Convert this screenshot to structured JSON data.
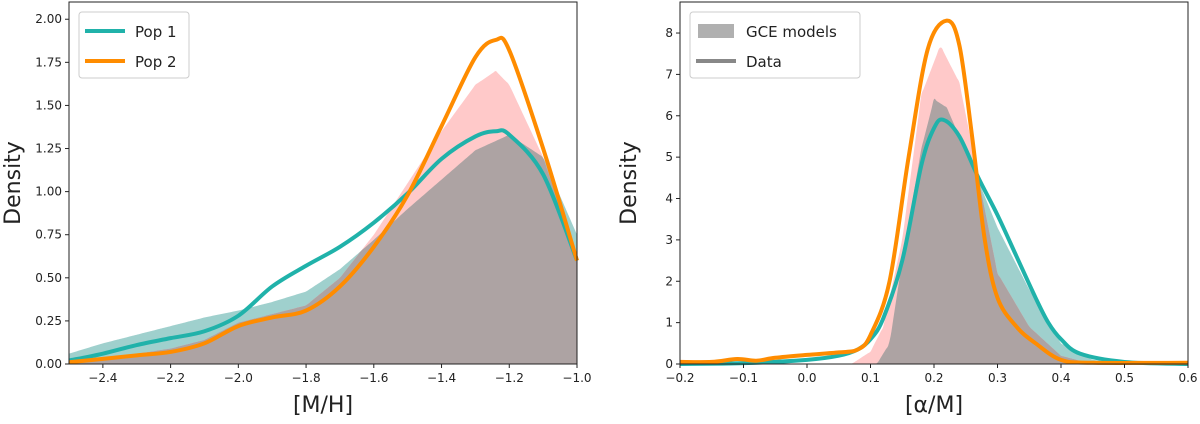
{
  "colors": {
    "pop1": "#20b2aa",
    "pop2": "#ff8c00",
    "pop1_fill": "#9fd0cd",
    "pop2_fill": "#ffc9c9",
    "overlap_fill": "#ada3a3",
    "legend_gray": "#888888"
  },
  "chart_data": [
    {
      "type": "area",
      "xlabel": "[M/H]",
      "ylabel": "Density",
      "xlim": [
        -2.5,
        -1.0
      ],
      "ylim": [
        0,
        2.1
      ],
      "xticks": [
        -2.4,
        -2.2,
        -2.0,
        -1.8,
        -1.6,
        -1.4,
        -1.2,
        -1.0
      ],
      "xtick_labels": [
        "−2.4",
        "−2.2",
        "−2.0",
        "−1.8",
        "−1.6",
        "−1.4",
        "−1.2",
        "−1.0"
      ],
      "yticks": [
        0,
        0.25,
        0.5,
        0.75,
        1.0,
        1.25,
        1.5,
        1.75,
        2.0
      ],
      "ytick_labels": [
        "0.00",
        "0.25",
        "0.50",
        "0.75",
        "1.00",
        "1.25",
        "1.50",
        "1.75",
        "2.00"
      ],
      "legend": {
        "placement": "top-left",
        "entries": [
          {
            "label": "Pop 1",
            "color": "#20b2aa",
            "kind": "line"
          },
          {
            "label": "Pop 2",
            "color": "#ff8c00",
            "kind": "line"
          }
        ]
      },
      "fills": [
        {
          "series": "Pop 1",
          "x": [
            -2.5,
            -2.4,
            -2.3,
            -2.2,
            -2.1,
            -2.0,
            -1.9,
            -1.8,
            -1.7,
            -1.6,
            -1.5,
            -1.4,
            -1.3,
            -1.2,
            -1.1,
            -1.0
          ],
          "y": [
            0.06,
            0.12,
            0.17,
            0.22,
            0.27,
            0.31,
            0.36,
            0.42,
            0.55,
            0.72,
            0.9,
            1.07,
            1.24,
            1.33,
            1.2,
            0.75
          ]
        },
        {
          "series": "Pop 2",
          "x": [
            -2.5,
            -2.4,
            -2.3,
            -2.2,
            -2.1,
            -2.0,
            -1.9,
            -1.8,
            -1.7,
            -1.6,
            -1.5,
            -1.4,
            -1.3,
            -1.24,
            -1.2,
            -1.1,
            -1.0
          ],
          "y": [
            0.02,
            0.04,
            0.06,
            0.09,
            0.14,
            0.24,
            0.29,
            0.34,
            0.5,
            0.75,
            1.05,
            1.35,
            1.62,
            1.7,
            1.62,
            1.2,
            0.62
          ]
        }
      ],
      "lines": [
        {
          "series": "Pop 1",
          "x": [
            -2.5,
            -2.4,
            -2.3,
            -2.2,
            -2.1,
            -2.0,
            -1.9,
            -1.8,
            -1.7,
            -1.6,
            -1.5,
            -1.4,
            -1.3,
            -1.24,
            -1.2,
            -1.1,
            -1.0
          ],
          "y": [
            0.02,
            0.06,
            0.11,
            0.15,
            0.19,
            0.28,
            0.45,
            0.57,
            0.68,
            0.82,
            0.99,
            1.19,
            1.32,
            1.35,
            1.33,
            1.1,
            0.6
          ]
        },
        {
          "series": "Pop 2",
          "x": [
            -2.5,
            -2.4,
            -2.3,
            -2.2,
            -2.1,
            -2.0,
            -1.9,
            -1.8,
            -1.7,
            -1.6,
            -1.5,
            -1.4,
            -1.3,
            -1.24,
            -1.2,
            -1.1,
            -1.0
          ],
          "y": [
            0.01,
            0.03,
            0.05,
            0.07,
            0.12,
            0.22,
            0.27,
            0.31,
            0.45,
            0.68,
            0.98,
            1.38,
            1.78,
            1.88,
            1.82,
            1.25,
            0.6
          ]
        }
      ]
    },
    {
      "type": "area",
      "xlabel": "[α/M]",
      "ylabel": "Density",
      "xlim": [
        -0.2,
        0.6
      ],
      "ylim": [
        0,
        8.75
      ],
      "xticks": [
        -0.2,
        -0.1,
        0.0,
        0.1,
        0.2,
        0.3,
        0.4,
        0.5,
        0.6
      ],
      "xtick_labels": [
        "−0.2",
        "−0.1",
        "0.0",
        "0.1",
        "0.2",
        "0.3",
        "0.4",
        "0.5",
        "0.6"
      ],
      "yticks": [
        0,
        1,
        2,
        3,
        4,
        5,
        6,
        7,
        8
      ],
      "ytick_labels": [
        "0",
        "1",
        "2",
        "3",
        "4",
        "5",
        "6",
        "7",
        "8"
      ],
      "legend": {
        "placement": "top-left",
        "entries": [
          {
            "label": "GCE models",
            "color": "#b0b0b0",
            "kind": "patch"
          },
          {
            "label": "Data",
            "color": "#888888",
            "kind": "line"
          }
        ]
      },
      "fills": [
        {
          "series": "Pop 1",
          "x": [
            -0.2,
            0.11,
            0.13,
            0.15,
            0.18,
            0.2,
            0.22,
            0.26,
            0.3,
            0.35,
            0.4,
            0.45,
            0.5,
            0.6
          ],
          "y": [
            0,
            0,
            0.5,
            2.5,
            5.2,
            6.4,
            6.2,
            4.8,
            3.3,
            1.8,
            0.5,
            0.1,
            0.02,
            0
          ]
        },
        {
          "series": "Pop 2",
          "x": [
            -0.2,
            0.07,
            0.1,
            0.12,
            0.15,
            0.18,
            0.21,
            0.24,
            0.27,
            0.3,
            0.35,
            0.4,
            0.45,
            0.6
          ],
          "y": [
            0,
            0,
            0.3,
            0.9,
            3,
            6.5,
            7.7,
            6.8,
            4.5,
            2.2,
            0.9,
            0.2,
            0,
            0
          ]
        }
      ],
      "lines": [
        {
          "series": "Pop 1",
          "x": [
            -0.2,
            -0.1,
            0.0,
            0.05,
            0.08,
            0.1,
            0.12,
            0.15,
            0.18,
            0.2,
            0.215,
            0.24,
            0.27,
            0.3,
            0.33,
            0.36,
            0.38,
            0.4,
            0.43,
            0.5,
            0.6
          ],
          "y": [
            0,
            0.02,
            0.1,
            0.2,
            0.35,
            0.6,
            1.1,
            2.5,
            4.8,
            5.7,
            5.9,
            5.5,
            4.5,
            3.6,
            2.6,
            1.6,
            1.0,
            0.6,
            0.25,
            0.05,
            0
          ]
        },
        {
          "series": "Pop 2",
          "x": [
            -0.2,
            -0.15,
            -0.11,
            -0.08,
            -0.05,
            0.0,
            0.05,
            0.08,
            0.1,
            0.13,
            0.16,
            0.19,
            0.22,
            0.24,
            0.26,
            0.28,
            0.3,
            0.33,
            0.36,
            0.4,
            0.45,
            0.6
          ],
          "y": [
            0.05,
            0.05,
            0.12,
            0.08,
            0.15,
            0.22,
            0.28,
            0.35,
            0.7,
            2,
            5,
            7.6,
            8.3,
            7.7,
            5.5,
            3,
            1.6,
            0.9,
            0.5,
            0.1,
            0.03,
            0.03
          ]
        }
      ]
    }
  ]
}
